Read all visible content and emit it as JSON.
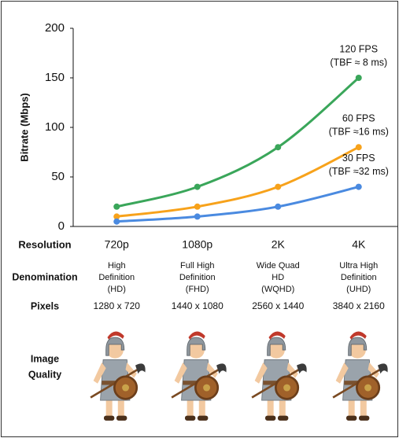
{
  "chart_data": {
    "type": "line",
    "y_label": "Bitrate (Mbps)",
    "x_label": "Resolution",
    "categories": [
      "720p",
      "1080p",
      "2K",
      "4K"
    ],
    "series": [
      {
        "name": "120 FPS",
        "note": "(TBF ≈ 8 ms)",
        "color": "#3aa65a",
        "values": [
          20,
          40,
          80,
          150
        ]
      },
      {
        "name": "60 FPS",
        "note": "(TBF ≈16 ms)",
        "color": "#f7a21b",
        "values": [
          10,
          20,
          40,
          80
        ]
      },
      {
        "name": "30 FPS",
        "note": "(TBF ≈32 ms)",
        "color": "#4a8ae0",
        "values": [
          5,
          10,
          20,
          40
        ]
      }
    ],
    "ylim": [
      0,
      200
    ],
    "yticks": [
      0,
      50,
      100,
      150,
      200
    ],
    "grid": false
  },
  "table": {
    "rows": [
      {
        "header": [
          "Denomination"
        ],
        "cells": [
          [
            "High",
            "Definition",
            "(HD)"
          ],
          [
            "Full High",
            "Definition",
            "(FHD)"
          ],
          [
            "Wide Quad",
            "HD",
            "(WQHD)"
          ],
          [
            "Ultra High",
            "Definition",
            "(UHD)"
          ]
        ]
      },
      {
        "header": [
          "Pixels"
        ],
        "cells": [
          [
            "1280 x 720"
          ],
          [
            "1440 x 1080"
          ],
          [
            "2560 x 1440"
          ],
          [
            "3840 x 2160"
          ]
        ]
      },
      {
        "header": [
          "Image",
          "Quality"
        ],
        "cells": []
      }
    ]
  }
}
